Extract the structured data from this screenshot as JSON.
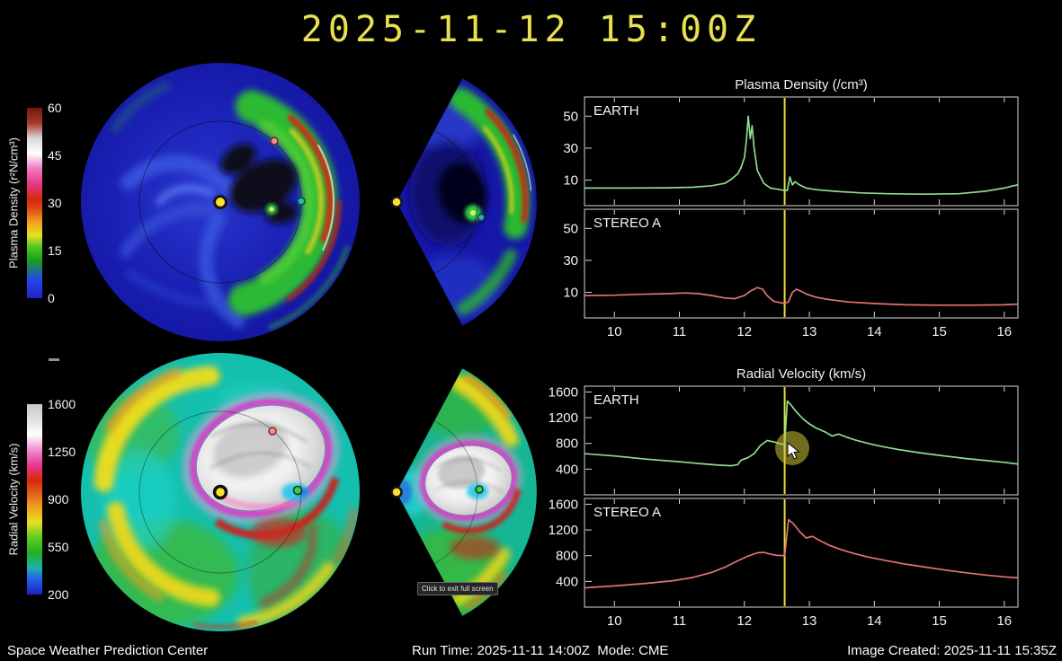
{
  "header": {
    "title": "2025-11-12 15:00Z"
  },
  "colorbars": {
    "density": {
      "label": "Plasma Density (r²N/cm³)",
      "ticks": [
        "60",
        "45",
        "30",
        "15",
        "0"
      ]
    },
    "velocity": {
      "label": "Radial Velocity (km/s)",
      "ticks": [
        "1600",
        "1250",
        "900",
        "550",
        "200"
      ]
    }
  },
  "cursor": {
    "tooltip": "Click to exit full screen"
  },
  "footer": {
    "left": "Space Weather Prediction Center",
    "center": "Run Time: 2025-11-11 14:00Z  Mode: CME",
    "right": "Image Created: 2025-11-11 15:35Z"
  },
  "chart_data": [
    {
      "id": "density-earth",
      "type": "line",
      "title": "Plasma Density (/cm³)",
      "series_label": "EARTH",
      "color": "#8fdc8f",
      "xlim": [
        9.54,
        16.21
      ],
      "ylim": [
        -6,
        62
      ],
      "xticks": [
        10,
        11,
        12,
        13,
        14,
        15,
        16
      ],
      "yticks": [
        10,
        30,
        50
      ],
      "marker_x": 12.62,
      "marker_color": "#e6de3c",
      "show_xlabels": false,
      "x": [
        9.55,
        10.2,
        10.8,
        11.2,
        11.5,
        11.7,
        11.8,
        11.9,
        11.95,
        12.0,
        12.03,
        12.06,
        12.09,
        12.12,
        12.15,
        12.2,
        12.3,
        12.4,
        12.55,
        12.62,
        12.66,
        12.7,
        12.74,
        12.78,
        12.85,
        12.95,
        13.1,
        13.4,
        13.8,
        14.2,
        14.8,
        15.3,
        15.7,
        16.0,
        16.1,
        16.2
      ],
      "y": [
        5,
        5,
        5.2,
        5.5,
        6.5,
        8,
        10.5,
        14,
        18,
        24,
        34,
        50,
        36,
        44,
        30,
        16,
        8,
        5,
        4,
        3.5,
        3.5,
        12,
        7,
        9,
        7,
        5,
        4,
        3,
        2,
        1.5,
        1.2,
        1.5,
        3,
        5,
        6,
        7
      ]
    },
    {
      "id": "density-stereoa",
      "type": "line",
      "title": "Plasma Density (/cm³)",
      "series_label": "STEREO A",
      "color": "#e57373",
      "xlim": [
        9.54,
        16.21
      ],
      "ylim": [
        -6,
        62
      ],
      "xticks": [
        10,
        11,
        12,
        13,
        14,
        15,
        16
      ],
      "yticks": [
        10,
        30,
        50
      ],
      "marker_x": 12.62,
      "marker_color": "#e6de3c",
      "show_xlabels": true,
      "x": [
        9.55,
        10.0,
        10.4,
        10.8,
        11.1,
        11.3,
        11.5,
        11.7,
        11.85,
        12.0,
        12.1,
        12.2,
        12.28,
        12.35,
        12.45,
        12.55,
        12.62,
        12.68,
        12.74,
        12.8,
        12.88,
        12.95,
        13.1,
        13.3,
        13.6,
        14.0,
        14.5,
        15.0,
        15.5,
        16.0,
        16.2
      ],
      "y": [
        8,
        8.2,
        8.8,
        9.2,
        9.6,
        9.2,
        8,
        6.5,
        6,
        8,
        11,
        13,
        12,
        8,
        4.5,
        3.5,
        3.2,
        4,
        10,
        12,
        10.5,
        9,
        7,
        5.5,
        4,
        3,
        2.2,
        2,
        2,
        2.2,
        2.6
      ]
    },
    {
      "id": "velocity-earth",
      "type": "line",
      "title": "Radial Velocity (km/s)",
      "series_label": "EARTH",
      "color": "#8fdc8f",
      "xlim": [
        9.54,
        16.21
      ],
      "ylim": [
        0,
        1690
      ],
      "xticks": [
        10,
        11,
        12,
        13,
        14,
        15,
        16
      ],
      "yticks": [
        400,
        800,
        1200,
        1600
      ],
      "marker_x": 12.62,
      "marker_color": "#e6de3c",
      "show_xlabels": false,
      "x": [
        9.55,
        10.0,
        10.5,
        11.0,
        11.3,
        11.6,
        11.8,
        11.9,
        11.95,
        12.05,
        12.15,
        12.25,
        12.35,
        12.45,
        12.55,
        12.62,
        12.66,
        12.72,
        12.8,
        12.9,
        13.0,
        13.1,
        13.25,
        13.35,
        13.45,
        13.55,
        13.7,
        13.9,
        14.1,
        14.4,
        14.7,
        15.0,
        15.4,
        15.8,
        16.0,
        16.2
      ],
      "y": [
        640,
        605,
        555,
        515,
        487,
        462,
        452,
        470,
        540,
        575,
        640,
        770,
        845,
        825,
        795,
        780,
        1460,
        1395,
        1290,
        1185,
        1105,
        1040,
        975,
        915,
        945,
        905,
        855,
        800,
        755,
        700,
        655,
        615,
        565,
        525,
        505,
        480
      ]
    },
    {
      "id": "velocity-stereoa",
      "type": "line",
      "title": "Radial Velocity (km/s)",
      "series_label": "STEREO A",
      "color": "#e57373",
      "xlim": [
        9.54,
        16.21
      ],
      "ylim": [
        0,
        1690
      ],
      "xticks": [
        10,
        11,
        12,
        13,
        14,
        15,
        16
      ],
      "yticks": [
        400,
        800,
        1200,
        1600
      ],
      "marker_x": 12.62,
      "marker_color": "#e6de3c",
      "show_xlabels": true,
      "x": [
        9.55,
        10.0,
        10.5,
        10.9,
        11.2,
        11.5,
        11.7,
        11.9,
        12.05,
        12.2,
        12.3,
        12.4,
        12.5,
        12.62,
        12.68,
        12.75,
        12.85,
        12.95,
        13.05,
        13.15,
        13.3,
        13.5,
        13.7,
        13.9,
        14.2,
        14.5,
        14.8,
        15.1,
        15.4,
        15.7,
        16.0,
        16.2
      ],
      "y": [
        300,
        330,
        370,
        410,
        460,
        540,
        620,
        720,
        790,
        845,
        850,
        825,
        805,
        800,
        1360,
        1300,
        1175,
        1075,
        1100,
        1040,
        965,
        890,
        830,
        780,
        720,
        665,
        620,
        575,
        535,
        500,
        470,
        455
      ]
    }
  ]
}
